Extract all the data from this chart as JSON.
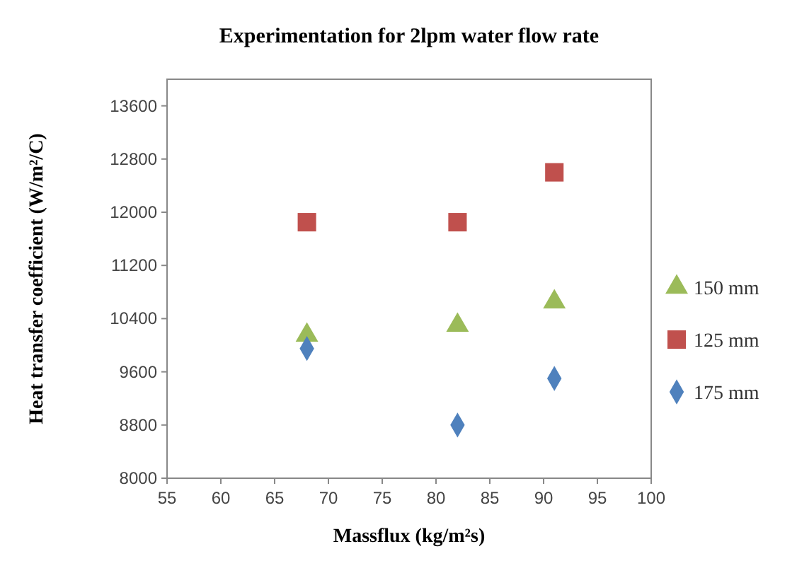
{
  "chart_data": {
    "type": "scatter",
    "title": "Experimentation for 2lpm water flow rate",
    "xlabel": "Massflux (kg/m²s)",
    "ylabel": "Heat transfer coefficient (W/m²/C)",
    "xlim": [
      55,
      100
    ],
    "xticks": [
      55,
      60,
      65,
      70,
      75,
      80,
      85,
      90,
      95,
      100
    ],
    "ylim": [
      8000,
      14000
    ],
    "yticks": [
      8000,
      8800,
      9600,
      10400,
      11200,
      12000,
      12800,
      13600
    ],
    "grid": false,
    "legend": "right",
    "series": [
      {
        "name": "150 mm",
        "color": "#9bbb59",
        "marker": "triangle",
        "x": [
          68,
          82,
          91
        ],
        "values": [
          10150,
          10300,
          10650
        ]
      },
      {
        "name": "125 mm",
        "color": "#c0504d",
        "marker": "square",
        "x": [
          68,
          82,
          91
        ],
        "values": [
          11850,
          11850,
          12600
        ]
      },
      {
        "name": "175 mm",
        "color": "#4f81bd",
        "marker": "diamond",
        "x": [
          68,
          82,
          91
        ],
        "values": [
          9950,
          8800,
          9500
        ]
      }
    ]
  }
}
